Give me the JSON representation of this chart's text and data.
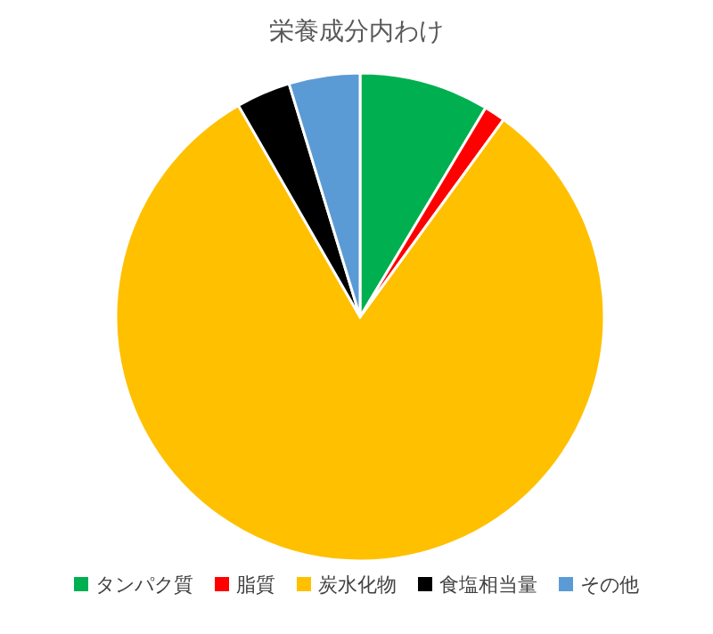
{
  "chart_data": {
    "type": "pie",
    "title": "栄養成分内わけ",
    "categories": [
      "タンパク質",
      "脂質",
      "炭水化物",
      "食塩相当量",
      "その他"
    ],
    "values": [
      8.6,
      1.4,
      81.7,
      3.6,
      4.7
    ],
    "colors": [
      "#00b050",
      "#ff0000",
      "#ffc000",
      "#000000",
      "#5b9bd5"
    ],
    "legend": "bottom"
  }
}
